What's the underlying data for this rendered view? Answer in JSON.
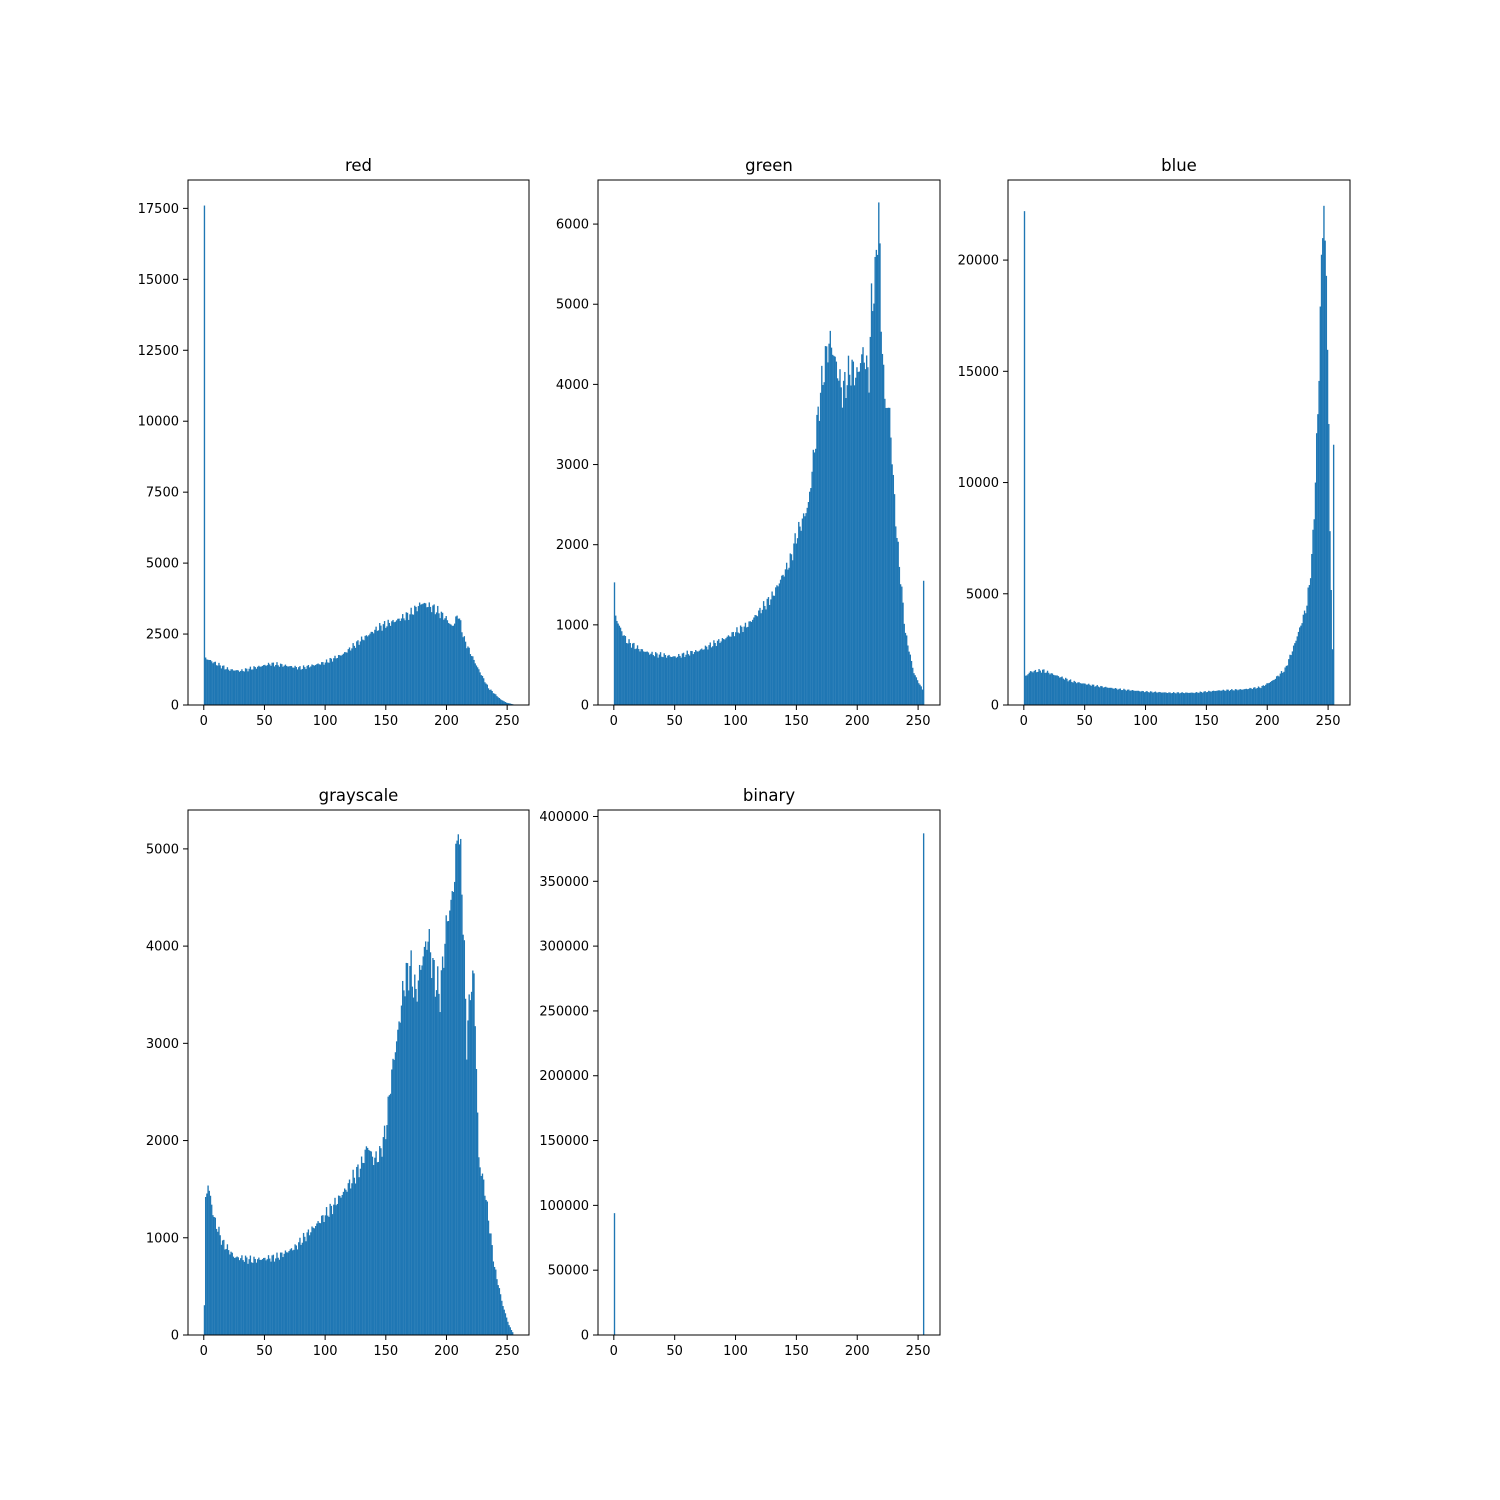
{
  "colors": {
    "bar": "#1f77b4",
    "axes": "#000000",
    "background": "#ffffff"
  },
  "chart_data": [
    {
      "id": "red",
      "type": "bar",
      "title": "red",
      "xlabel": "",
      "ylabel": "",
      "xlim": [
        -13,
        268
      ],
      "ylim": [
        0,
        18500
      ],
      "xticks": [
        0,
        50,
        100,
        150,
        200,
        250
      ],
      "yticks": [
        0,
        2500,
        5000,
        7500,
        10000,
        12500,
        15000,
        17500
      ],
      "x_range": [
        0,
        255
      ],
      "values_description": "histogram counts for pixel values 0..255, interpolated between anchor points",
      "anchors": [
        [
          0,
          17600
        ],
        [
          1,
          1650
        ],
        [
          10,
          1450
        ],
        [
          20,
          1250
        ],
        [
          30,
          1200
        ],
        [
          40,
          1300
        ],
        [
          55,
          1450
        ],
        [
          65,
          1400
        ],
        [
          80,
          1300
        ],
        [
          100,
          1500
        ],
        [
          115,
          1800
        ],
        [
          130,
          2300
        ],
        [
          145,
          2750
        ],
        [
          160,
          3000
        ],
        [
          170,
          3200
        ],
        [
          180,
          3600
        ],
        [
          190,
          3400
        ],
        [
          200,
          3050
        ],
        [
          205,
          2750
        ],
        [
          210,
          3200
        ],
        [
          215,
          2300
        ],
        [
          225,
          1400
        ],
        [
          235,
          600
        ],
        [
          245,
          200
        ],
        [
          250,
          80
        ],
        [
          255,
          30
        ]
      ],
      "spikes": [
        [
          0,
          17600
        ]
      ],
      "grid": false,
      "legend": "none"
    },
    {
      "id": "green",
      "type": "bar",
      "title": "green",
      "xlabel": "",
      "ylabel": "",
      "xlim": [
        -13,
        268
      ],
      "ylim": [
        0,
        6550
      ],
      "xticks": [
        0,
        50,
        100,
        150,
        200,
        250
      ],
      "yticks": [
        0,
        1000,
        2000,
        3000,
        4000,
        5000,
        6000
      ],
      "x_range": [
        0,
        255
      ],
      "values_description": "histogram counts for pixel values 0..255, interpolated between anchor points",
      "anchors": [
        [
          0,
          1530
        ],
        [
          1,
          1100
        ],
        [
          5,
          950
        ],
        [
          10,
          800
        ],
        [
          20,
          700
        ],
        [
          30,
          640
        ],
        [
          50,
          600
        ],
        [
          70,
          680
        ],
        [
          90,
          820
        ],
        [
          110,
          1000
        ],
        [
          130,
          1350
        ],
        [
          145,
          1800
        ],
        [
          150,
          2100
        ],
        [
          160,
          2500
        ],
        [
          165,
          3200
        ],
        [
          170,
          3900
        ],
        [
          175,
          4400
        ],
        [
          178,
          4550
        ],
        [
          182,
          4300
        ],
        [
          188,
          3900
        ],
        [
          195,
          4200
        ],
        [
          200,
          4100
        ],
        [
          205,
          4400
        ],
        [
          210,
          4100
        ],
        [
          212,
          5000
        ],
        [
          215,
          5300
        ],
        [
          218,
          6270
        ],
        [
          220,
          4800
        ],
        [
          223,
          3800
        ],
        [
          227,
          3650
        ],
        [
          230,
          2800
        ],
        [
          233,
          2100
        ],
        [
          240,
          900
        ],
        [
          247,
          400
        ],
        [
          252,
          250
        ],
        [
          254,
          200
        ],
        [
          255,
          1550
        ]
      ],
      "spikes": [
        [
          0,
          1530
        ],
        [
          255,
          1550
        ],
        [
          218,
          6270
        ]
      ],
      "grid": false,
      "legend": "none"
    },
    {
      "id": "blue",
      "type": "bar",
      "title": "blue",
      "xlabel": "",
      "ylabel": "",
      "xlim": [
        -13,
        268
      ],
      "ylim": [
        0,
        23600
      ],
      "xticks": [
        0,
        50,
        100,
        150,
        200,
        250
      ],
      "yticks": [
        0,
        5000,
        10000,
        15000,
        20000
      ],
      "x_range": [
        0,
        255
      ],
      "values_description": "histogram counts for pixel values 0..255, interpolated between anchor points",
      "anchors": [
        [
          0,
          22200
        ],
        [
          1,
          1300
        ],
        [
          5,
          1500
        ],
        [
          15,
          1550
        ],
        [
          25,
          1350
        ],
        [
          40,
          1050
        ],
        [
          60,
          850
        ],
        [
          80,
          700
        ],
        [
          100,
          600
        ],
        [
          120,
          550
        ],
        [
          140,
          550
        ],
        [
          160,
          650
        ],
        [
          180,
          700
        ],
        [
          195,
          800
        ],
        [
          205,
          1100
        ],
        [
          215,
          1600
        ],
        [
          222,
          2600
        ],
        [
          228,
          3600
        ],
        [
          233,
          4500
        ],
        [
          237,
          6500
        ],
        [
          240,
          10000
        ],
        [
          243,
          15000
        ],
        [
          245,
          20000
        ],
        [
          247,
          22600
        ],
        [
          249,
          19000
        ],
        [
          251,
          13000
        ],
        [
          252,
          7700
        ],
        [
          253,
          5000
        ],
        [
          254,
          2600
        ],
        [
          255,
          11700
        ]
      ],
      "spikes": [
        [
          0,
          22200
        ],
        [
          255,
          11700
        ]
      ],
      "grid": false,
      "legend": "none"
    },
    {
      "id": "grayscale",
      "type": "bar",
      "title": "grayscale",
      "xlabel": "",
      "ylabel": "",
      "xlim": [
        -13,
        268
      ],
      "ylim": [
        0,
        5400
      ],
      "xticks": [
        0,
        50,
        100,
        150,
        200,
        250
      ],
      "yticks": [
        0,
        1000,
        2000,
        3000,
        4000,
        5000
      ],
      "x_range": [
        0,
        255
      ],
      "values_description": "histogram counts for pixel values 0..255, interpolated between anchor points",
      "anchors": [
        [
          0,
          300
        ],
        [
          1,
          1400
        ],
        [
          3,
          1550
        ],
        [
          8,
          1200
        ],
        [
          15,
          950
        ],
        [
          25,
          800
        ],
        [
          40,
          770
        ],
        [
          60,
          800
        ],
        [
          75,
          900
        ],
        [
          90,
          1100
        ],
        [
          105,
          1300
        ],
        [
          120,
          1550
        ],
        [
          130,
          1750
        ],
        [
          135,
          1950
        ],
        [
          140,
          1800
        ],
        [
          145,
          1850
        ],
        [
          150,
          2100
        ],
        [
          155,
          2700
        ],
        [
          160,
          3100
        ],
        [
          165,
          3600
        ],
        [
          170,
          3800
        ],
        [
          175,
          3500
        ],
        [
          180,
          3850
        ],
        [
          185,
          4100
        ],
        [
          190,
          3700
        ],
        [
          195,
          3500
        ],
        [
          200,
          4200
        ],
        [
          205,
          4500
        ],
        [
          210,
          5150
        ],
        [
          213,
          4700
        ],
        [
          217,
          3000
        ],
        [
          220,
          3550
        ],
        [
          223,
          3700
        ],
        [
          227,
          1800
        ],
        [
          232,
          1500
        ],
        [
          240,
          700
        ],
        [
          247,
          300
        ],
        [
          252,
          100
        ],
        [
          255,
          30
        ]
      ],
      "spikes": [
        [
          210,
          5150
        ]
      ],
      "grid": false,
      "legend": "none"
    },
    {
      "id": "binary",
      "type": "bar",
      "title": "binary",
      "xlabel": "",
      "ylabel": "",
      "xlim": [
        -13,
        268
      ],
      "ylim": [
        0,
        405000
      ],
      "xticks": [
        0,
        50,
        100,
        150,
        200,
        250
      ],
      "yticks": [
        0,
        50000,
        100000,
        150000,
        200000,
        250000,
        300000,
        350000,
        400000
      ],
      "x_range": [
        0,
        255
      ],
      "values_description": "only two non-zero bins",
      "anchors": [],
      "spikes": [
        [
          0,
          94000
        ],
        [
          255,
          387000
        ]
      ],
      "grid": false,
      "legend": "none"
    }
  ]
}
